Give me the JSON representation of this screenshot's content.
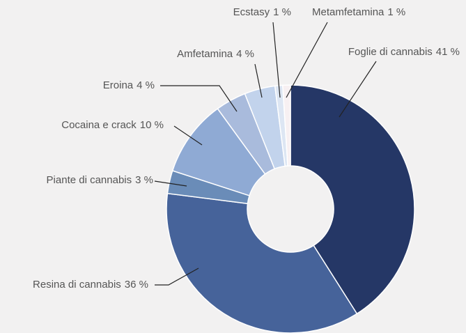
{
  "chart_data": {
    "type": "donut",
    "categories": [
      "Foglie di cannabis",
      "Resina di cannabis",
      "Piante di cannabis",
      "Cocaina e crack",
      "Eroina",
      "Amfetamina",
      "Ecstasy",
      "Metamfetamina"
    ],
    "values": [
      41,
      36,
      3,
      10,
      4,
      4,
      1,
      1
    ],
    "value_labels": [
      "41 %",
      "36 %",
      "3 %",
      "10 %",
      "4 %",
      "4 %",
      "1 %",
      "1 %"
    ],
    "colors": [
      "#253766",
      "#46639a",
      "#6a8cb8",
      "#8faad4",
      "#a9bbdc",
      "#c2d3ec",
      "#dde6f3",
      "#f7f0f2"
    ]
  }
}
